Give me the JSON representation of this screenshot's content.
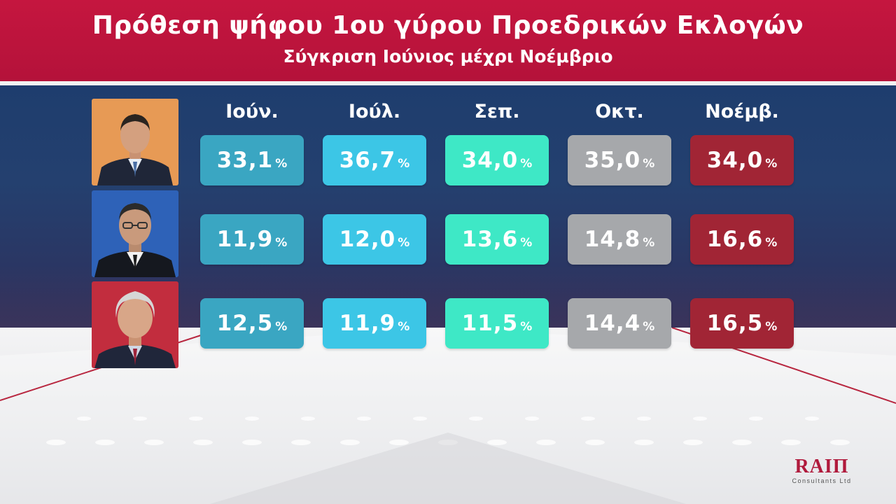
{
  "header": {
    "title": "Πρόθεση ψήφου 1ου γύρου Προεδρικών Εκλογών",
    "subtitle": "Σύγκριση Ιούνιος μέχρι Νοέμβριο"
  },
  "chart_data": {
    "type": "table",
    "title": "Πρόθεση ψήφου 1ου γύρου Προεδρικών Εκλογών",
    "subtitle": "Σύγκριση Ιούνιος μέχρι Νοέμβριο",
    "unit": "%",
    "columns": [
      "Ιούν.",
      "Ιούλ.",
      "Σεπ.",
      "Οκτ.",
      "Νοέμβ."
    ],
    "rows": [
      {
        "values": [
          "33,1",
          "36,7",
          "34,0",
          "35,0",
          "34,0"
        ]
      },
      {
        "values": [
          "11,9",
          "12,0",
          "13,6",
          "14,8",
          "16,6"
        ]
      },
      {
        "values": [
          "12,5",
          "11,9",
          "11,5",
          "14,4",
          "16,5"
        ]
      }
    ],
    "column_colors": [
      "#3aa6c2",
      "#3cc6e6",
      "#3ee8c6",
      "#a6a8ab",
      "#a12535"
    ],
    "photo_backgrounds": [
      "#e79a55",
      "#2e62b8",
      "#c22d3e"
    ]
  },
  "logo": {
    "main": "RAIП",
    "sub": "Consultants Ltd"
  }
}
